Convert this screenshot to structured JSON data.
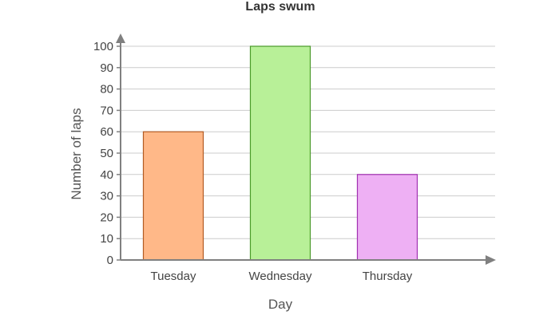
{
  "chart_data": {
    "type": "bar",
    "title": "Laps swum",
    "xlabel": "Day",
    "ylabel": "Number of laps",
    "categories": [
      "Tuesday",
      "Wednesday",
      "Thursday"
    ],
    "values": [
      60,
      100,
      40
    ],
    "ylim": [
      0,
      100
    ],
    "yticks": [
      "0",
      "10",
      "20",
      "30",
      "40",
      "50",
      "60",
      "70",
      "80",
      "90",
      "100"
    ],
    "grid": true,
    "legend": "none",
    "colors": {
      "fills": [
        "#ffb888",
        "#b8f098",
        "#eeb0f4"
      ],
      "strokes": [
        "#b25a22",
        "#4a9a2a",
        "#a030b0"
      ],
      "grid": "#cccccc",
      "axis": "#808080"
    }
  }
}
